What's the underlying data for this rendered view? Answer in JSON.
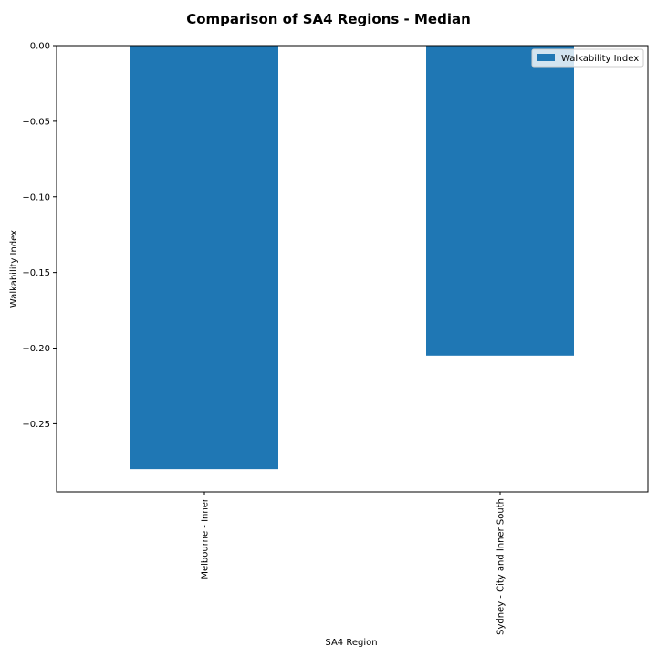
{
  "chart_data": {
    "type": "bar",
    "title": "Comparison of SA4 Regions - Median",
    "xlabel": "SA4 Region",
    "ylabel": "Walkability Index",
    "categories": [
      "Melbourne - Inner",
      "Sydney - City and Inner South"
    ],
    "series": [
      {
        "name": "Walkability Index",
        "values": [
          -0.28,
          -0.205
        ],
        "color": "#1f77b4"
      }
    ],
    "ylim": [
      -0.295,
      0.0
    ],
    "yticks": [
      0.0,
      -0.05,
      -0.1,
      -0.15,
      -0.2,
      -0.25
    ],
    "ytick_labels": [
      "0.00",
      "−0.05",
      "−0.10",
      "−0.15",
      "−0.20",
      "−0.25"
    ],
    "grid": false,
    "legend_position": "top-right",
    "xtick_rotation": "vertical"
  }
}
